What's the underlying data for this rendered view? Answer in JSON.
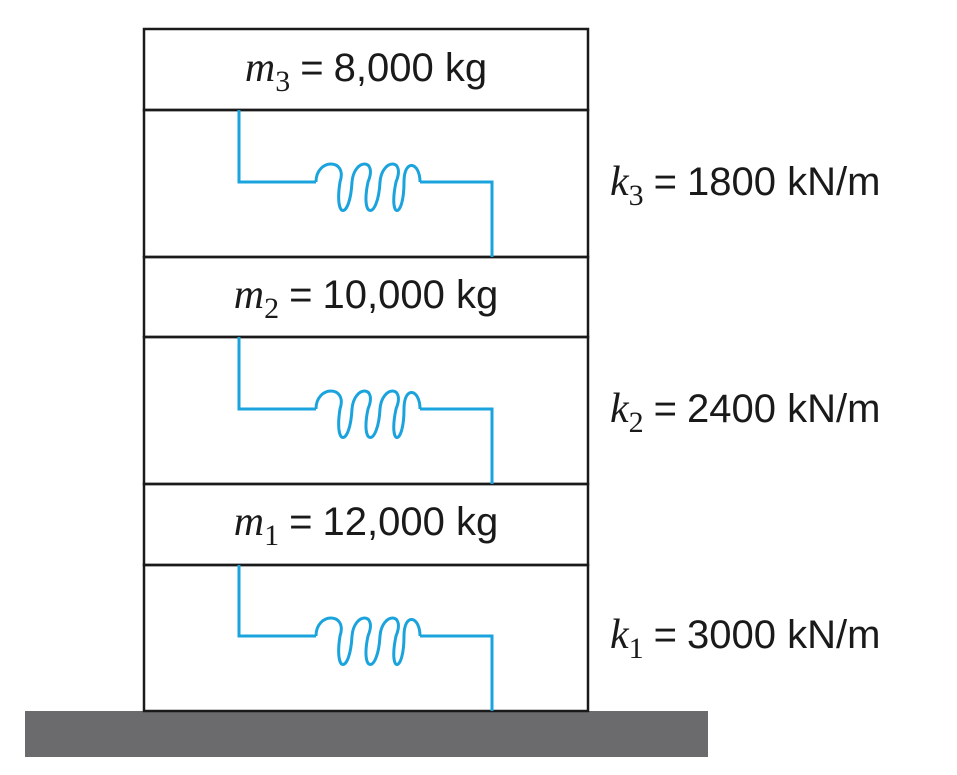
{
  "colors": {
    "frame": "#1a1a1a",
    "spring": "#1aa3dc",
    "ground": "#6b6b6d",
    "background": "#ffffff"
  },
  "masses": [
    {
      "symbol": "m",
      "subscript": "3",
      "equals": "=",
      "value": "8,000 kg"
    },
    {
      "symbol": "m",
      "subscript": "2",
      "equals": "=",
      "value": "10,000 kg"
    },
    {
      "symbol": "m",
      "subscript": "1",
      "equals": "=",
      "value": "12,000 kg"
    }
  ],
  "springs": [
    {
      "symbol": "k",
      "subscript": "3",
      "equals": "=",
      "value": "1800 kN/m"
    },
    {
      "symbol": "k",
      "subscript": "2",
      "equals": "=",
      "value": "2400 kN/m"
    },
    {
      "symbol": "k",
      "subscript": "1",
      "equals": "=",
      "value": "3000 kN/m"
    }
  ]
}
